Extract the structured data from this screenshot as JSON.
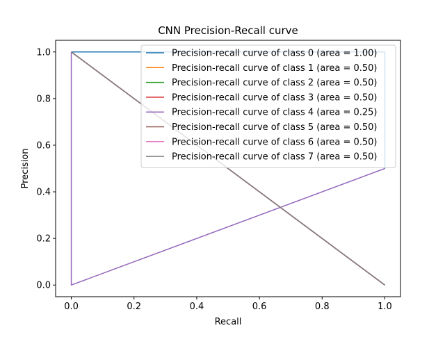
{
  "chart_data": {
    "type": "line",
    "title": "CNN Precision-Recall curve",
    "xlabel": "Recall",
    "ylabel": "Precision",
    "xlim": [
      -0.05,
      1.05
    ],
    "ylim": [
      -0.05,
      1.05
    ],
    "xticks": [
      0.0,
      0.2,
      0.4,
      0.6,
      0.8,
      1.0
    ],
    "xtick_labels": [
      "0.0",
      "0.2",
      "0.4",
      "0.6",
      "0.8",
      "1.0"
    ],
    "yticks": [
      0.0,
      0.2,
      0.4,
      0.6,
      0.8,
      1.0
    ],
    "ytick_labels": [
      "0.0",
      "0.2",
      "0.4",
      "0.6",
      "0.8",
      "1.0"
    ],
    "grid": false,
    "legend_position": "upper right",
    "series": [
      {
        "name": "Precision-recall curve of class 0 (area = 1.00)",
        "color": "#1f77b4",
        "x": [
          0,
          0,
          1,
          1
        ],
        "y": [
          1,
          1,
          1,
          0.5
        ]
      },
      {
        "name": "Precision-recall curve of class 1 (area = 0.50)",
        "color": "#ff7f0e",
        "x": [
          0,
          0,
          1
        ],
        "y": [
          1,
          1,
          0
        ]
      },
      {
        "name": "Precision-recall curve of class 2 (area = 0.50)",
        "color": "#2ca02c",
        "x": [
          0,
          0,
          1
        ],
        "y": [
          1,
          1,
          0
        ]
      },
      {
        "name": "Precision-recall curve of class 3 (area = 0.50)",
        "color": "#d62728",
        "x": [
          0,
          0,
          1
        ],
        "y": [
          1,
          1,
          0
        ]
      },
      {
        "name": "Precision-recall curve of class 4 (area = 0.25)",
        "color": "#9467bd",
        "x": [
          0,
          0,
          1,
          1
        ],
        "y": [
          1,
          0,
          0.5,
          0.5
        ]
      },
      {
        "name": "Precision-recall curve of class 5 (area = 0.50)",
        "color": "#8c564b",
        "x": [
          0,
          0,
          1
        ],
        "y": [
          1,
          1,
          0
        ]
      },
      {
        "name": "Precision-recall curve of class 6 (area = 0.50)",
        "color": "#e377c2",
        "x": [
          0,
          0,
          1
        ],
        "y": [
          1,
          1,
          0
        ]
      },
      {
        "name": "Precision-recall curve of class 7 (area = 0.50)",
        "color": "#7f7f7f",
        "x": [
          0,
          0,
          1
        ],
        "y": [
          1,
          1,
          0
        ]
      }
    ]
  }
}
